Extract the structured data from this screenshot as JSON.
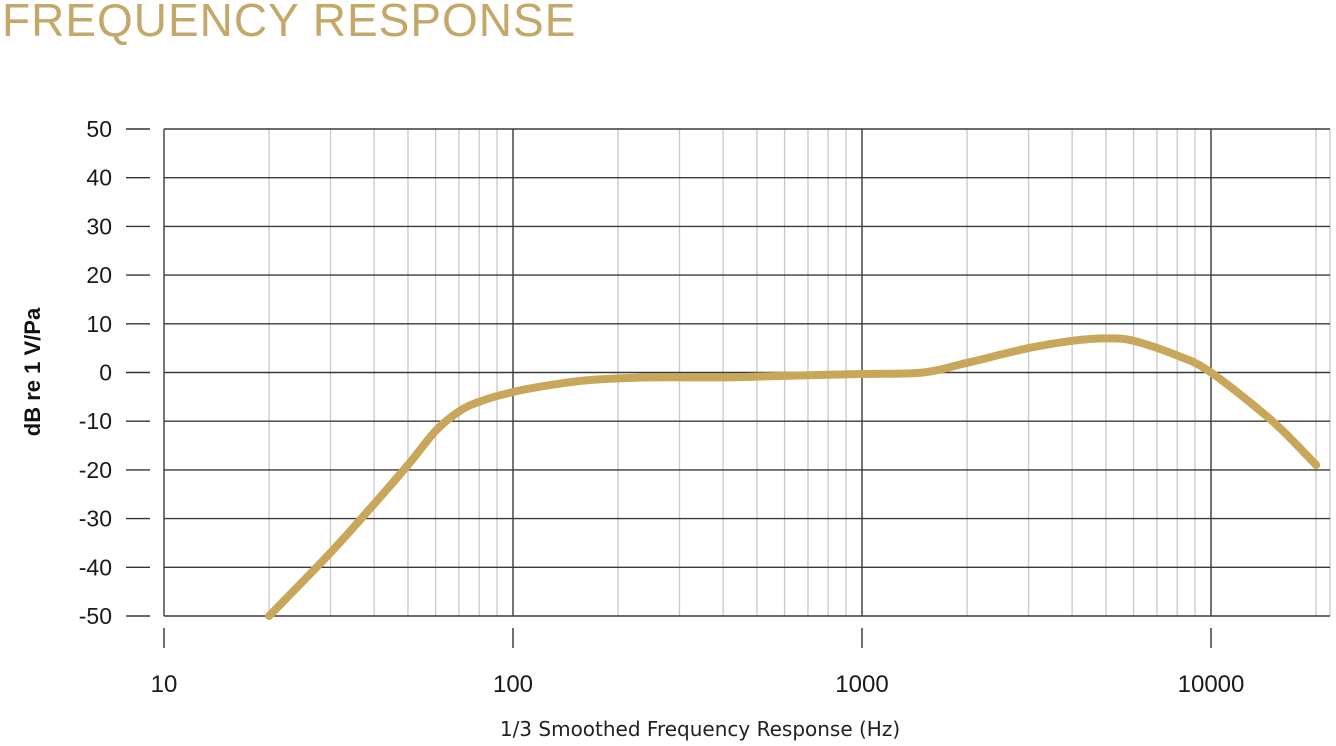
{
  "title": "FREQUENCY RESPONSE",
  "colors": {
    "title": "#c4a86a",
    "curve": "#c9a75a",
    "grid_major": "#3a3a3a",
    "grid_minor": "#c8c8c8"
  },
  "chart_data": {
    "type": "line",
    "xlabel": "1/3 Smoothed Frequency Response (Hz)",
    "ylabel": "dB re 1 V/Pa",
    "x_scale": "log",
    "xlim": [
      10,
      20000
    ],
    "ylim": [
      -50,
      50
    ],
    "x_ticks": [
      {
        "value": 10,
        "label": "10"
      },
      {
        "value": 100,
        "label": "100"
      },
      {
        "value": 1000,
        "label": "1000"
      },
      {
        "value": 10000,
        "label": "10000"
      }
    ],
    "y_ticks": [
      {
        "value": 50,
        "label": "50"
      },
      {
        "value": 40,
        "label": "40"
      },
      {
        "value": 30,
        "label": "30"
      },
      {
        "value": 20,
        "label": "20"
      },
      {
        "value": 10,
        "label": "10"
      },
      {
        "value": 0,
        "label": "0"
      },
      {
        "value": -10,
        "label": "-10"
      },
      {
        "value": -20,
        "label": "-20"
      },
      {
        "value": -30,
        "label": "-30"
      },
      {
        "value": -40,
        "label": "-40"
      },
      {
        "value": -50,
        "label": "-50"
      }
    ],
    "grid": true,
    "legend": false,
    "series": [
      {
        "x": [
          20,
          30,
          40,
          50,
          60,
          70,
          80,
          100,
          130,
          170,
          250,
          400,
          600,
          1000,
          1500,
          2000,
          3000,
          4000,
          5000,
          6000,
          8000,
          10000,
          15000,
          20000
        ],
        "y": [
          -50,
          -37,
          -27,
          -19,
          -12,
          -8,
          -6,
          -4,
          -2.5,
          -1.5,
          -1,
          -1,
          -0.7,
          -0.3,
          0,
          2,
          5,
          6.5,
          7,
          6.5,
          3.5,
          0,
          -10,
          -19
        ]
      }
    ]
  }
}
